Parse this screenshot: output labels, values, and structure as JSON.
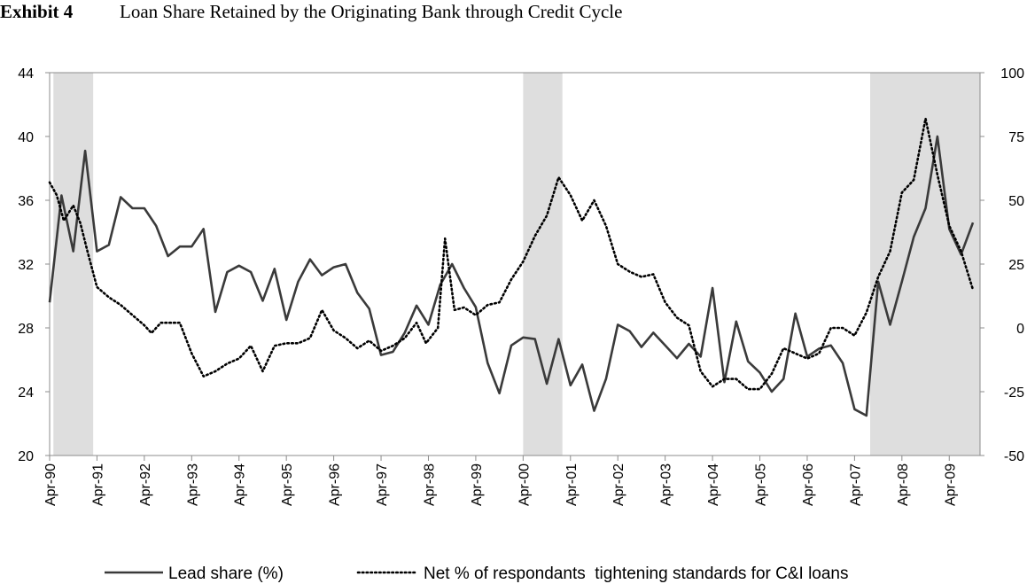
{
  "header": {
    "exhibit": "Exhibit 4",
    "title": "Loan Share Retained by the Originating Bank through Credit Cycle"
  },
  "chart_data": {
    "type": "line",
    "title": "Loan Share Retained by the Originating Bank through Credit Cycle",
    "x_categories": [
      "Apr-90",
      "Apr-91",
      "Apr-92",
      "Apr-93",
      "Apr-94",
      "Apr-95",
      "Apr-96",
      "Apr-97",
      "Apr-98",
      "Apr-99",
      "Apr-00",
      "Apr-01",
      "Apr-02",
      "Apr-03",
      "Apr-04",
      "Apr-05",
      "Apr-06",
      "Apr-07",
      "Apr-08",
      "Apr-09"
    ],
    "x_range_years": [
      1990.25,
      2009.9
    ],
    "y_left": {
      "min": 20,
      "max": 44,
      "ticks": [
        20,
        24,
        28,
        32,
        36,
        40,
        44
      ]
    },
    "y_right": {
      "min": -50,
      "max": 100,
      "ticks": [
        -50,
        -25,
        0,
        25,
        50,
        75,
        100
      ]
    },
    "grid": false,
    "legend_position": "bottom",
    "recession_shading": [
      [
        1990.33,
        1991.17
      ],
      [
        2000.25,
        2001.08
      ],
      [
        2007.58,
        2009.9
      ]
    ],
    "series": [
      {
        "name": "Lead share (%)",
        "axis": "left",
        "style": "solid",
        "color": "#3a3a3a",
        "points": [
          [
            1990.25,
            29.6
          ],
          [
            1990.5,
            36.3
          ],
          [
            1990.75,
            32.8
          ],
          [
            1991.0,
            39.1
          ],
          [
            1991.25,
            32.8
          ],
          [
            1991.5,
            33.2
          ],
          [
            1991.75,
            36.2
          ],
          [
            1992.0,
            35.5
          ],
          [
            1992.25,
            35.5
          ],
          [
            1992.5,
            34.4
          ],
          [
            1992.75,
            32.5
          ],
          [
            1993.0,
            33.1
          ],
          [
            1993.25,
            33.1
          ],
          [
            1993.5,
            34.2
          ],
          [
            1993.75,
            29.0
          ],
          [
            1994.0,
            31.5
          ],
          [
            1994.25,
            31.9
          ],
          [
            1994.5,
            31.5
          ],
          [
            1994.75,
            29.7
          ],
          [
            1995.0,
            31.7
          ],
          [
            1995.25,
            28.5
          ],
          [
            1995.5,
            30.9
          ],
          [
            1995.75,
            32.3
          ],
          [
            1996.0,
            31.3
          ],
          [
            1996.25,
            31.8
          ],
          [
            1996.5,
            32.0
          ],
          [
            1996.75,
            30.2
          ],
          [
            1997.0,
            29.2
          ],
          [
            1997.25,
            26.3
          ],
          [
            1997.5,
            26.5
          ],
          [
            1997.75,
            27.7
          ],
          [
            1998.0,
            29.4
          ],
          [
            1998.25,
            28.2
          ],
          [
            1998.5,
            30.7
          ],
          [
            1998.75,
            32.0
          ],
          [
            1999.0,
            30.5
          ],
          [
            1999.25,
            29.3
          ],
          [
            1999.5,
            25.8
          ],
          [
            1999.75,
            23.9
          ],
          [
            2000.0,
            26.9
          ],
          [
            2000.25,
            27.4
          ],
          [
            2000.5,
            27.3
          ],
          [
            2000.75,
            24.5
          ],
          [
            2001.0,
            27.3
          ],
          [
            2001.25,
            24.4
          ],
          [
            2001.5,
            25.7
          ],
          [
            2001.75,
            22.8
          ],
          [
            2002.0,
            24.8
          ],
          [
            2002.25,
            28.2
          ],
          [
            2002.5,
            27.8
          ],
          [
            2002.75,
            26.8
          ],
          [
            2003.0,
            27.7
          ],
          [
            2003.25,
            26.9
          ],
          [
            2003.5,
            26.1
          ],
          [
            2003.75,
            27.0
          ],
          [
            2004.0,
            26.2
          ],
          [
            2004.25,
            30.5
          ],
          [
            2004.5,
            24.6
          ],
          [
            2004.75,
            28.4
          ],
          [
            2005.0,
            25.9
          ],
          [
            2005.25,
            25.2
          ],
          [
            2005.5,
            24.0
          ],
          [
            2005.75,
            24.8
          ],
          [
            2006.0,
            28.9
          ],
          [
            2006.25,
            26.2
          ],
          [
            2006.5,
            26.7
          ],
          [
            2006.75,
            26.9
          ],
          [
            2007.0,
            25.8
          ],
          [
            2007.25,
            22.9
          ],
          [
            2007.5,
            22.5
          ],
          [
            2007.75,
            30.9
          ],
          [
            2008.0,
            28.2
          ],
          [
            2008.25,
            30.9
          ],
          [
            2008.5,
            33.7
          ],
          [
            2008.75,
            35.5
          ],
          [
            2009.0,
            40.0
          ],
          [
            2009.25,
            34.2
          ],
          [
            2009.5,
            32.6
          ],
          [
            2009.75,
            34.6
          ]
        ]
      },
      {
        "name": "Net % of respondants  tightening standards for C&I loans",
        "axis": "right",
        "style": "dotted",
        "color": "#000000",
        "points": [
          [
            1990.25,
            57
          ],
          [
            1990.4,
            52
          ],
          [
            1990.55,
            42
          ],
          [
            1990.75,
            48
          ],
          [
            1990.9,
            41
          ],
          [
            1991.05,
            30
          ],
          [
            1991.25,
            16
          ],
          [
            1991.5,
            12
          ],
          [
            1991.75,
            9
          ],
          [
            1992.0,
            5
          ],
          [
            1992.25,
            1
          ],
          [
            1992.4,
            -2
          ],
          [
            1992.6,
            2
          ],
          [
            1992.75,
            2
          ],
          [
            1993.0,
            2
          ],
          [
            1993.25,
            -10
          ],
          [
            1993.5,
            -19
          ],
          [
            1993.75,
            -17
          ],
          [
            1994.0,
            -14
          ],
          [
            1994.25,
            -12
          ],
          [
            1994.5,
            -7
          ],
          [
            1994.75,
            -17
          ],
          [
            1995.0,
            -7
          ],
          [
            1995.25,
            -6
          ],
          [
            1995.5,
            -6
          ],
          [
            1995.75,
            -4
          ],
          [
            1996.0,
            7
          ],
          [
            1996.25,
            -1
          ],
          [
            1996.5,
            -4
          ],
          [
            1996.75,
            -8
          ],
          [
            1997.0,
            -5
          ],
          [
            1997.25,
            -9
          ],
          [
            1997.5,
            -7
          ],
          [
            1997.75,
            -4
          ],
          [
            1998.0,
            2
          ],
          [
            1998.2,
            -6
          ],
          [
            1998.45,
            0
          ],
          [
            1998.6,
            35
          ],
          [
            1998.8,
            7
          ],
          [
            1999.0,
            8
          ],
          [
            1999.25,
            5
          ],
          [
            1999.5,
            9
          ],
          [
            1999.75,
            10
          ],
          [
            2000.0,
            19
          ],
          [
            2000.25,
            26
          ],
          [
            2000.5,
            36
          ],
          [
            2000.75,
            44
          ],
          [
            2001.0,
            59
          ],
          [
            2001.25,
            52
          ],
          [
            2001.5,
            42
          ],
          [
            2001.75,
            50
          ],
          [
            2002.0,
            40
          ],
          [
            2002.25,
            25
          ],
          [
            2002.5,
            22
          ],
          [
            2002.75,
            20
          ],
          [
            2003.0,
            21
          ],
          [
            2003.25,
            10
          ],
          [
            2003.5,
            4
          ],
          [
            2003.75,
            1
          ],
          [
            2004.0,
            -17
          ],
          [
            2004.25,
            -23
          ],
          [
            2004.5,
            -20
          ],
          [
            2004.75,
            -20
          ],
          [
            2005.0,
            -24
          ],
          [
            2005.25,
            -24
          ],
          [
            2005.5,
            -18
          ],
          [
            2005.75,
            -8
          ],
          [
            2006.0,
            -10
          ],
          [
            2006.25,
            -12
          ],
          [
            2006.5,
            -10
          ],
          [
            2006.75,
            0
          ],
          [
            2007.0,
            0
          ],
          [
            2007.25,
            -3
          ],
          [
            2007.5,
            6
          ],
          [
            2007.75,
            20
          ],
          [
            2008.0,
            30
          ],
          [
            2008.25,
            53
          ],
          [
            2008.5,
            58
          ],
          [
            2008.75,
            82
          ],
          [
            2009.0,
            60
          ],
          [
            2009.25,
            40
          ],
          [
            2009.5,
            30
          ],
          [
            2009.75,
            15
          ]
        ]
      }
    ]
  }
}
